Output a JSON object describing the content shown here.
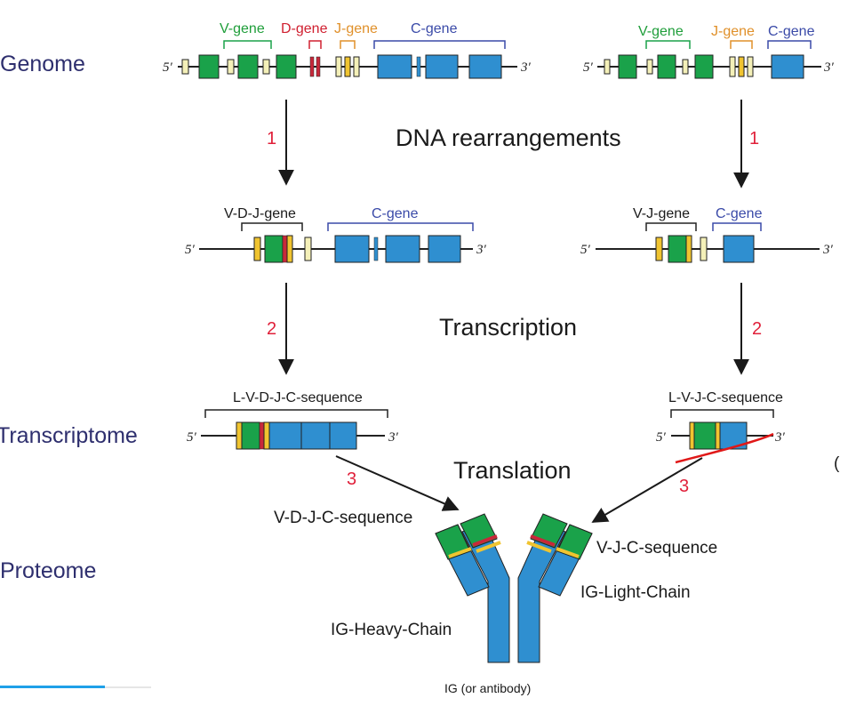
{
  "sections": {
    "genome": "Genome",
    "transcriptome": "Transcriptome",
    "proteome": "Proteome"
  },
  "processes": {
    "dna": "DNA rearrangements",
    "transcription": "Transcription",
    "translation": "Translation"
  },
  "steps": {
    "one": "1",
    "two": "2",
    "three": "3"
  },
  "ends": {
    "five": "5′",
    "three": "3′"
  },
  "gene_labels": {
    "v": "V-gene",
    "d": "D-gene",
    "j": "J-gene",
    "c": "C-gene",
    "vdj": "V-D-J-gene",
    "vj": "V-J-gene"
  },
  "sequences": {
    "lvdjc": "L-V-D-J-C-sequence",
    "lvjc": "L-V-J-C-sequence",
    "vdjc": "V-D-J-C-sequence",
    "vjc": "V-J-C-sequence"
  },
  "chains": {
    "heavy": "IG-Heavy-Chain",
    "light": "IG-Light-Chain"
  },
  "caption": "IG (or antibody)",
  "edge_glyph": "(",
  "colors": {
    "v_segment": "#1aa24a",
    "d_segment": "#c8283a",
    "j_segment": "#f0c430",
    "leader": "#f4f0b8",
    "c_segment": "#2f8fd0",
    "step_number": "#e0203a",
    "section_text": "#2e2f6e",
    "progress": "#1ea0e8"
  }
}
